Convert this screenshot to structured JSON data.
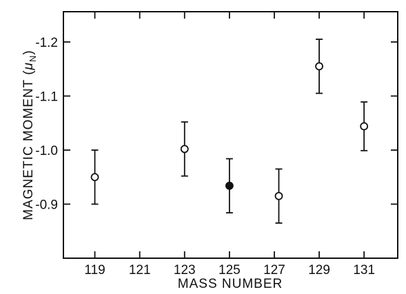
{
  "chart_data": {
    "type": "scatter",
    "xlabel": "MASS NUMBER",
    "ylabel_main": "MAGNETIC MOMENT (",
    "ylabel_mu": "μ",
    "ylabel_sub": "N",
    "ylabel_close": ")",
    "xlim": [
      117.6,
      132.5
    ],
    "ylim": [
      -0.8,
      -1.256
    ],
    "x_ticks": [
      119,
      121,
      123,
      125,
      127,
      129,
      131
    ],
    "x_tick_labels": [
      "119",
      "121",
      "123",
      "125",
      "127",
      "129",
      "131"
    ],
    "y_ticks": [
      -0.9,
      -1.0,
      -1.1,
      -1.2
    ],
    "y_tick_labels": [
      "-0.9",
      "-1.0",
      "-1.1",
      "-1.2"
    ],
    "grid": false,
    "points": [
      {
        "x": 119,
        "y": -0.95,
        "err": 0.05,
        "marker": "open"
      },
      {
        "x": 123,
        "y": -1.002,
        "err": 0.05,
        "marker": "open"
      },
      {
        "x": 125,
        "y": -0.934,
        "err": 0.05,
        "marker": "filled"
      },
      {
        "x": 127.2,
        "y": -0.915,
        "err": 0.05,
        "marker": "open"
      },
      {
        "x": 129,
        "y": -1.155,
        "err": 0.05,
        "marker": "open"
      },
      {
        "x": 131,
        "y": -1.044,
        "err": 0.045,
        "marker": "open"
      }
    ]
  }
}
